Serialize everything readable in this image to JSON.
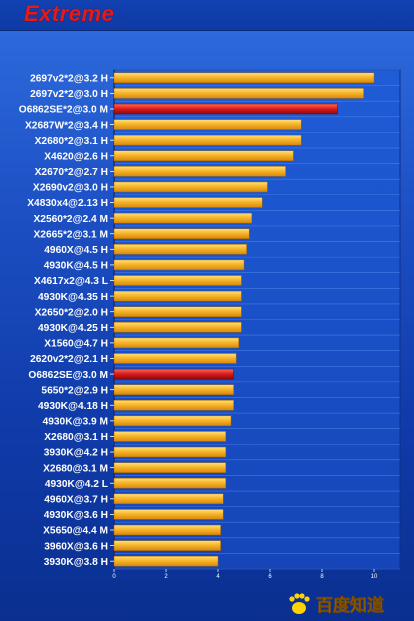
{
  "chart_data": {
    "type": "bar",
    "orientation": "horizontal",
    "title": "Extreme",
    "categories": [
      "2697v2*2@3.2 H",
      "2697v2*2@3.0 H",
      "O6862SE*2@3.0 M",
      "X2687W*2@3.4 H",
      "X2680*2@3.1 H",
      "X4620@2.6 H",
      "X2670*2@2.7 H",
      "X2690v2@3.0 H",
      "X4830x4@2.13 H",
      "X2560*2@2.4 M",
      "X2665*2@3.1 M",
      "4960X@4.5 H",
      "4930K@4.5 H",
      "X4617x2@4.3 L",
      "4930K@4.35 H",
      "X2650*2@2.0 H",
      "4930K@4.25 H",
      "X1560@4.7 H",
      "2620v2*2@2.1 H",
      "O6862SE@3.0 M",
      "5650*2@2.9 H",
      "4930K@4.18 H",
      "4930K@3.9 M",
      "X2680@3.1 H",
      "3930K@4.2 H",
      "X2680@3.1 M",
      "4930K@4.2 L",
      "4960X@3.7 H",
      "4930K@3.6 H",
      "X5650@4.4 M",
      "3960X@3.6 H",
      "3930K@3.8 H"
    ],
    "values": [
      10.0,
      9.6,
      8.6,
      7.2,
      7.2,
      6.9,
      6.6,
      5.9,
      5.7,
      5.3,
      5.2,
      5.1,
      5.0,
      4.9,
      4.9,
      4.9,
      4.9,
      4.8,
      4.7,
      4.6,
      4.6,
      4.6,
      4.5,
      4.3,
      4.3,
      4.3,
      4.3,
      4.2,
      4.2,
      4.1,
      4.1,
      4.0
    ],
    "highlight": [
      false,
      false,
      true,
      false,
      false,
      false,
      false,
      false,
      false,
      false,
      false,
      false,
      false,
      false,
      false,
      false,
      false,
      false,
      false,
      true,
      false,
      false,
      false,
      false,
      false,
      false,
      false,
      false,
      false,
      false,
      false,
      false
    ],
    "x_ticks": [
      "0",
      "2",
      "4",
      "6",
      "8",
      "10"
    ],
    "xlim": [
      0,
      11
    ],
    "grid": true,
    "xlabel": "",
    "ylabel": ""
  },
  "colors": {
    "bar_fill": "#f4b020",
    "bar_top": "#ffe070",
    "highlight_fill": "#d01818",
    "highlight_top": "#ff5a4a",
    "label_text": "#ffffff",
    "title_color": "#e21a1a",
    "watermark_color": "#ffd200"
  },
  "watermark": {
    "text": "百度知道",
    "icon": "paw-logo"
  }
}
